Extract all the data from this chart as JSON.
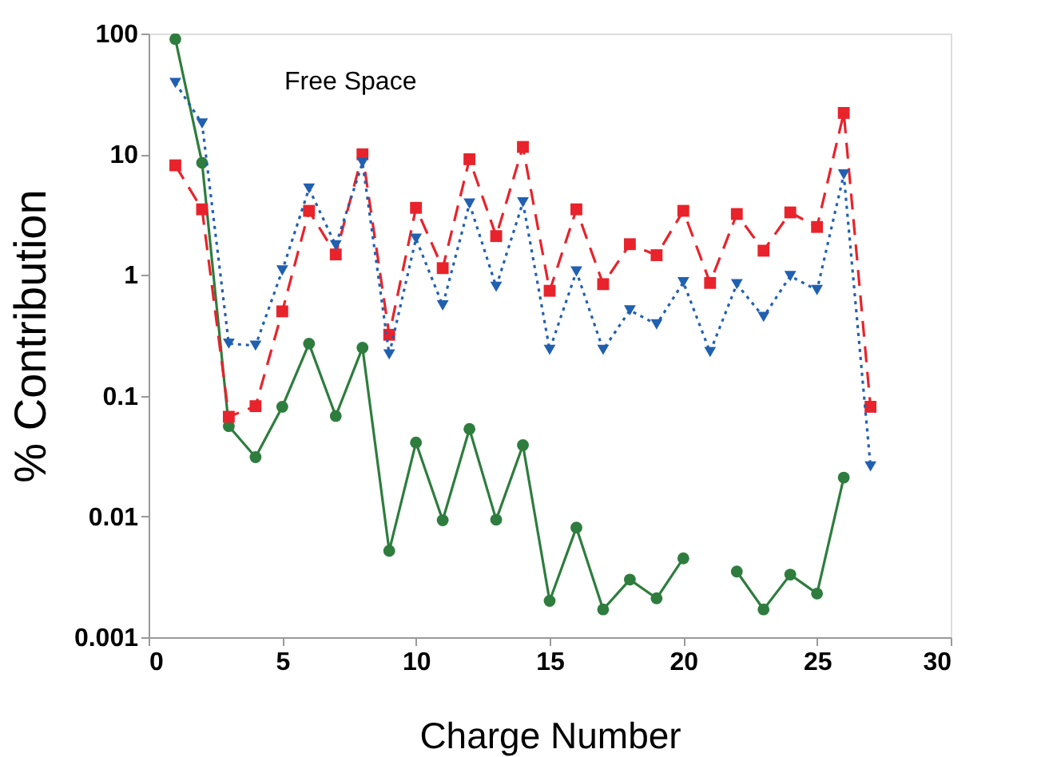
{
  "chart_data": {
    "type": "line",
    "xlabel": "Charge Number",
    "ylabel": "% Contribution",
    "annotations": [
      "Free Space"
    ],
    "x": [
      1,
      2,
      3,
      4,
      5,
      6,
      7,
      8,
      9,
      10,
      11,
      12,
      13,
      14,
      15,
      16,
      17,
      18,
      19,
      20,
      21,
      22,
      23,
      24,
      25,
      26,
      27
    ],
    "xlim": [
      0,
      30
    ],
    "xticks": [
      0,
      5,
      10,
      15,
      20,
      25,
      30
    ],
    "ylim": [
      0.001,
      100
    ],
    "yticks": [
      0.001,
      0.01,
      0.1,
      1,
      10,
      100
    ],
    "log": "y",
    "grid": false,
    "legend": false,
    "series": [
      {
        "color": "#2e7d3e",
        "marker": "circle",
        "line_style": "solid",
        "values": [
          90,
          8.5,
          0.056,
          0.031,
          0.081,
          0.27,
          0.068,
          0.25,
          0.0052,
          0.041,
          0.0093,
          0.053,
          0.0094,
          0.039,
          0.002,
          0.0081,
          0.0017,
          0.003,
          0.0021,
          0.0045,
          null,
          0.0035,
          0.0017,
          0.0033,
          0.0023,
          0.021,
          null
        ]
      },
      {
        "color": "#e8232b",
        "marker": "square",
        "line_style": "dashed",
        "values": [
          8.1,
          3.5,
          0.067,
          0.082,
          0.5,
          3.4,
          1.48,
          10,
          0.32,
          3.6,
          1.14,
          9.1,
          2.1,
          11.5,
          0.74,
          3.5,
          0.84,
          1.8,
          1.46,
          3.4,
          0.86,
          3.2,
          1.59,
          3.3,
          2.5,
          22,
          0.081
        ]
      },
      {
        "color": "#2160b0",
        "marker": "triangle",
        "line_style": "dotted",
        "values": [
          39,
          18,
          0.27,
          0.26,
          1.09,
          5.2,
          1.76,
          8.5,
          0.22,
          2.0,
          0.56,
          3.9,
          0.8,
          4.0,
          0.24,
          1.07,
          0.24,
          0.51,
          0.39,
          0.87,
          0.23,
          0.84,
          0.45,
          0.98,
          0.75,
          6.8,
          0.026
        ]
      }
    ]
  }
}
